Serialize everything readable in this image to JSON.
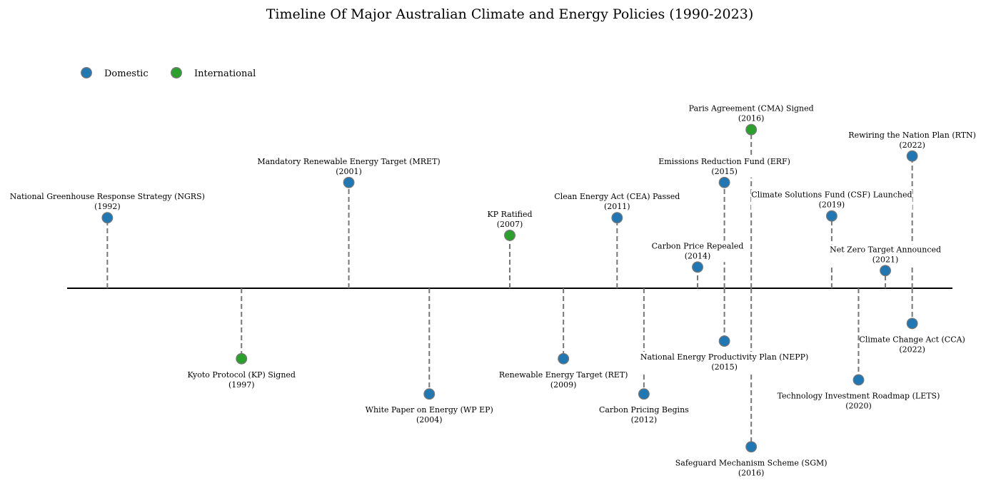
{
  "chart_data": {
    "type": "timeline",
    "title": "Timeline Of Major Australian Climate and Energy Policies (1990-2023)",
    "legend": {
      "placement": "top-left",
      "entries": [
        {
          "label": "Domestic",
          "color": "#1f77b4"
        },
        {
          "label": "International",
          "color": "#2ca02c"
        }
      ]
    },
    "xlim": [
      1990.5,
      2023.5
    ],
    "ylim": [
      -0.9,
      1.25
    ],
    "grid": false,
    "events": [
      {
        "label": "National Greenhouse Response Strategy (NGRS)",
        "year": 1992,
        "level": 0.4,
        "category": "Domestic"
      },
      {
        "label": "Kyoto Protocol (KP) Signed",
        "year": 1997,
        "level": -0.4,
        "category": "International"
      },
      {
        "label": "Mandatory Renewable Energy Target (MRET)",
        "year": 2001,
        "level": 0.6,
        "category": "Domestic"
      },
      {
        "label": "White Paper on Energy (WP EP)",
        "year": 2004,
        "level": -0.6,
        "category": "Domestic"
      },
      {
        "label": "KP Ratified",
        "year": 2007,
        "level": 0.3,
        "category": "International"
      },
      {
        "label": "Renewable Energy Target (RET)",
        "year": 2009,
        "level": -0.4,
        "category": "Domestic"
      },
      {
        "label": "Clean Energy Act (CEA) Passed",
        "year": 2011,
        "level": 0.4,
        "category": "Domestic"
      },
      {
        "label": "Carbon Pricing Begins",
        "year": 2012,
        "level": -0.6,
        "category": "Domestic"
      },
      {
        "label": "Carbon Price Repealed",
        "year": 2014,
        "level": 0.12,
        "category": "Domestic"
      },
      {
        "label": "Emissions Reduction Fund (ERF)",
        "year": 2015,
        "level": 0.6,
        "category": "Domestic"
      },
      {
        "label": "National Energy Productivity Plan (NEPP)",
        "year": 2015,
        "level": -0.3,
        "category": "Domestic"
      },
      {
        "label": "Paris Agreement (CMA) Signed",
        "year": 2016,
        "level": 0.9,
        "category": "International"
      },
      {
        "label": "Safeguard Mechanism Scheme (SGM)",
        "year": 2016,
        "level": -0.9,
        "category": "Domestic"
      },
      {
        "label": "Climate Solutions Fund (CSF) Launched",
        "year": 2019,
        "level": 0.41,
        "category": "Domestic"
      },
      {
        "label": "Technology Investment Roadmap (LETS)",
        "year": 2020,
        "level": -0.52,
        "category": "Domestic"
      },
      {
        "label": "Net Zero Target Announced",
        "year": 2021,
        "level": 0.1,
        "category": "Domestic"
      },
      {
        "label": "Rewiring the Nation Plan (RTN)",
        "year": 2022,
        "level": 0.75,
        "category": "Domestic"
      },
      {
        "label": "Climate Change Act (CCA)",
        "year": 2022,
        "level": -0.2,
        "category": "Domestic"
      }
    ]
  }
}
